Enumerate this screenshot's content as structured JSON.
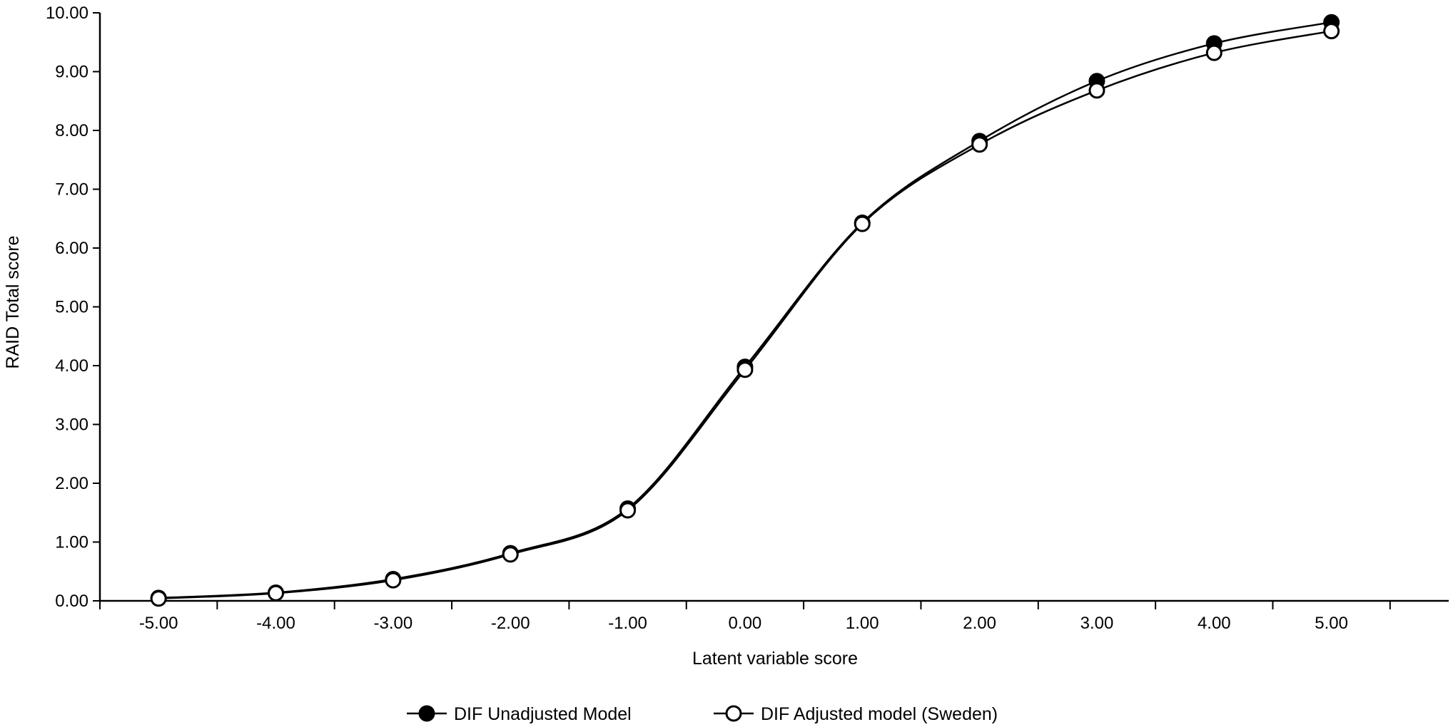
{
  "chart_data": {
    "type": "line",
    "title": "",
    "xlabel": "Latent variable score",
    "ylabel": "RAID Total score",
    "xlim": [
      -5.5,
      6.0
    ],
    "ylim": [
      0,
      10
    ],
    "x_tick_values": [
      -5,
      -4,
      -3,
      -2,
      -1,
      0,
      1,
      2,
      3,
      4,
      5
    ],
    "x_tick_labels": [
      "-5.00",
      "-4.00",
      "-3.00",
      "-2.00",
      "-1.00",
      "0.00",
      "1.00",
      "2.00",
      "3.00",
      "4.00",
      "5.00"
    ],
    "y_tick_values": [
      0,
      1,
      2,
      3,
      4,
      5,
      6,
      7,
      8,
      9,
      10
    ],
    "y_tick_labels": [
      "0.00",
      "1.00",
      "2.00",
      "3.00",
      "4.00",
      "5.00",
      "6.00",
      "7.00",
      "8.00",
      "9.00",
      "10.00"
    ],
    "grid": false,
    "legend_position": "bottom",
    "x": [
      -5,
      -4,
      -3,
      -2,
      -1,
      0,
      1,
      2,
      3,
      4,
      5
    ],
    "series": [
      {
        "name": "DIF Unadjusted Model",
        "marker": "filled-circle",
        "values": [
          0.05,
          0.14,
          0.37,
          0.81,
          1.57,
          3.98,
          6.43,
          7.82,
          8.84,
          9.48,
          9.84
        ]
      },
      {
        "name": "DIF Adjusted model (Sweden)",
        "marker": "open-circle",
        "values": [
          0.04,
          0.13,
          0.35,
          0.79,
          1.54,
          3.93,
          6.41,
          7.76,
          8.68,
          9.32,
          9.69
        ]
      }
    ]
  },
  "colors": {
    "line": "#000000",
    "open_marker_fill": "#ffffff",
    "filled_marker_fill": "#000000"
  }
}
